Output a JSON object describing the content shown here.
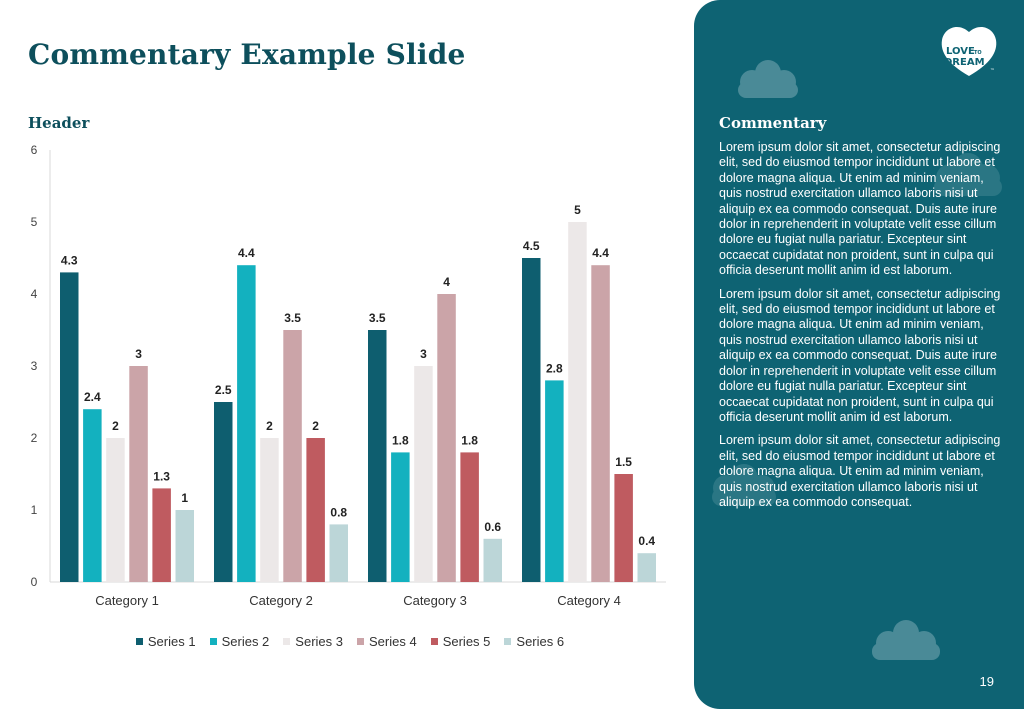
{
  "slide": {
    "title": "Commentary Example Slide",
    "chart_header": "Header",
    "page_number": "19"
  },
  "commentary": {
    "title": "Commentary",
    "paragraphs": [
      "Lorem ipsum dolor sit amet, consectetur adipiscing elit, sed do eiusmod tempor incididunt ut labore et dolore magna aliqua. Ut enim ad minim veniam, quis nostrud exercitation ullamco laboris nisi ut aliquip ex ea commodo consequat. Duis aute irure dolor in reprehenderit in voluptate velit esse cillum dolore eu fugiat nulla pariatur. Excepteur sint occaecat cupidatat non proident, sunt in culpa qui officia deserunt mollit anim id est laborum.",
      "Lorem ipsum dolor sit amet, consectetur adipiscing elit, sed do eiusmod tempor incididunt ut labore et dolore magna aliqua. Ut enim ad minim veniam, quis nostrud exercitation ullamco laboris nisi ut aliquip ex ea commodo consequat. Duis aute irure dolor in reprehenderit in voluptate velit esse cillum dolore eu fugiat nulla pariatur. Excepteur sint occaecat cupidatat non proident, sunt in culpa qui officia deserunt mollit anim id est laborum.",
      "Lorem ipsum dolor sit amet, consectetur adipiscing elit, sed do eiusmod tempor incididunt ut labore et dolore magna aliqua. Ut enim ad minim veniam, quis nostrud exercitation ullamco laboris nisi ut aliquip ex ea commodo consequat."
    ]
  },
  "logo": {
    "line1": "LOVE",
    "line1_small": "TO",
    "line2": "DREAM",
    "tm": "™"
  },
  "colors": {
    "panel": "#0e6373",
    "title": "#0d4f5c",
    "series": [
      "#0e5e6f",
      "#13b1bf",
      "#ece8e8",
      "#cba4a8",
      "#bf5b60",
      "#bcd6d8"
    ]
  },
  "chart_data": {
    "type": "bar",
    "title": "",
    "xlabel": "",
    "ylabel": "",
    "ylim": [
      0,
      6
    ],
    "yticks": [
      0,
      1,
      2,
      3,
      4,
      5,
      6
    ],
    "grid": false,
    "legend_position": "bottom",
    "categories": [
      "Category 1",
      "Category 2",
      "Category 3",
      "Category 4"
    ],
    "series": [
      {
        "name": "Series 1",
        "values": [
          4.3,
          2.5,
          3.5,
          4.5
        ]
      },
      {
        "name": "Series 2",
        "values": [
          2.4,
          4.4,
          1.8,
          2.8
        ]
      },
      {
        "name": "Series 3",
        "values": [
          2,
          2,
          3,
          5
        ]
      },
      {
        "name": "Series 4",
        "values": [
          3,
          3.5,
          4,
          4.4
        ]
      },
      {
        "name": "Series 5",
        "values": [
          1.3,
          2,
          1.8,
          1.5
        ]
      },
      {
        "name": "Series 6",
        "values": [
          1,
          0.8,
          0.6,
          0.4
        ]
      }
    ]
  }
}
